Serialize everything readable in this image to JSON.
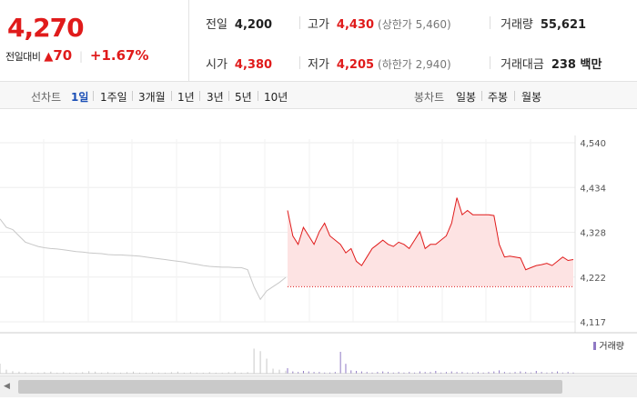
{
  "quote": {
    "price": "4,270",
    "change_label": "전일대비",
    "change_arrow": "▲",
    "change_value": "70",
    "change_pct": "+1.67%"
  },
  "stats": {
    "prev_close": {
      "label": "전일",
      "value": "4,200"
    },
    "high": {
      "label": "고가",
      "value": "4,430",
      "sub": "(상한가 5,460)"
    },
    "volume": {
      "label": "거래량",
      "value": "55,621"
    },
    "open": {
      "label": "시가",
      "value": "4,380"
    },
    "low": {
      "label": "저가",
      "value": "4,205",
      "sub": "(하한가 2,940)"
    },
    "trade_value": {
      "label": "거래대금",
      "value": "238 백만"
    }
  },
  "line_tabs": {
    "label": "선차트",
    "items": [
      "1일",
      "1주일",
      "3개월",
      "1년",
      "3년",
      "5년",
      "10년"
    ],
    "active": 0
  },
  "candle_tabs": {
    "label": "봉차트",
    "items": [
      "일봉",
      "주봉",
      "월봉"
    ]
  },
  "chart_data": {
    "type": "line",
    "y_ticks": [
      "4,540",
      "4,434",
      "4,328",
      "4,222",
      "4,117"
    ],
    "ylim": [
      4117,
      4540
    ],
    "prev_day_series": [
      4360,
      4340,
      4335,
      4320,
      4305,
      4300,
      4295,
      4292,
      4290,
      4289,
      4287,
      4285,
      4283,
      4282,
      4280,
      4279,
      4278,
      4276,
      4275,
      4275,
      4274,
      4273,
      4272,
      4270,
      4268,
      4266,
      4264,
      4262,
      4260,
      4258,
      4255,
      4253,
      4250,
      4248,
      4247,
      4246,
      4246,
      4245,
      4245,
      4240,
      4200,
      4170,
      4190,
      4200,
      4210,
      4222
    ],
    "today_series": [
      4380,
      4320,
      4300,
      4340,
      4320,
      4300,
      4330,
      4350,
      4320,
      4310,
      4300,
      4280,
      4290,
      4260,
      4250,
      4270,
      4290,
      4300,
      4310,
      4300,
      4295,
      4305,
      4300,
      4290,
      4310,
      4330,
      4290,
      4300,
      4300,
      4310,
      4320,
      4350,
      4410,
      4370,
      4380,
      4370,
      4370,
      4370,
      4370,
      4368,
      4300,
      4270,
      4272,
      4270,
      4268,
      4240,
      4245,
      4250,
      4252,
      4255,
      4250,
      4260,
      4270,
      4262,
      4264
    ],
    "prev_close": 4200,
    "volume_legend": "거래량",
    "prev_volume": [
      20,
      8,
      5,
      4,
      3,
      2,
      2,
      3,
      4,
      2,
      3,
      2,
      2,
      3,
      5,
      4,
      2,
      3,
      2,
      2,
      3,
      4,
      2,
      2,
      3,
      2,
      2,
      3,
      4,
      2,
      3,
      2,
      2,
      3,
      2,
      2,
      3,
      4,
      2,
      3,
      50,
      45,
      30,
      10,
      8,
      6
    ],
    "today_volume": [
      10,
      4,
      3,
      5,
      4,
      3,
      3,
      2,
      2,
      3,
      40,
      18,
      6,
      5,
      4,
      3,
      2,
      3,
      4,
      3,
      2,
      3,
      2,
      3,
      2,
      4,
      3,
      3,
      5,
      2,
      3,
      4,
      3,
      3,
      2,
      2,
      3,
      2,
      3,
      4,
      6,
      3,
      2,
      3,
      4,
      3,
      2,
      5,
      3,
      2,
      3,
      4,
      2,
      3,
      2
    ]
  },
  "colors": {
    "up_red": "#e01b1b",
    "prev_line": "#c8c8c8",
    "today_fill": "#fde3e3",
    "active_tab": "#1b4fb6",
    "volume_bar": "#8f79c4"
  }
}
